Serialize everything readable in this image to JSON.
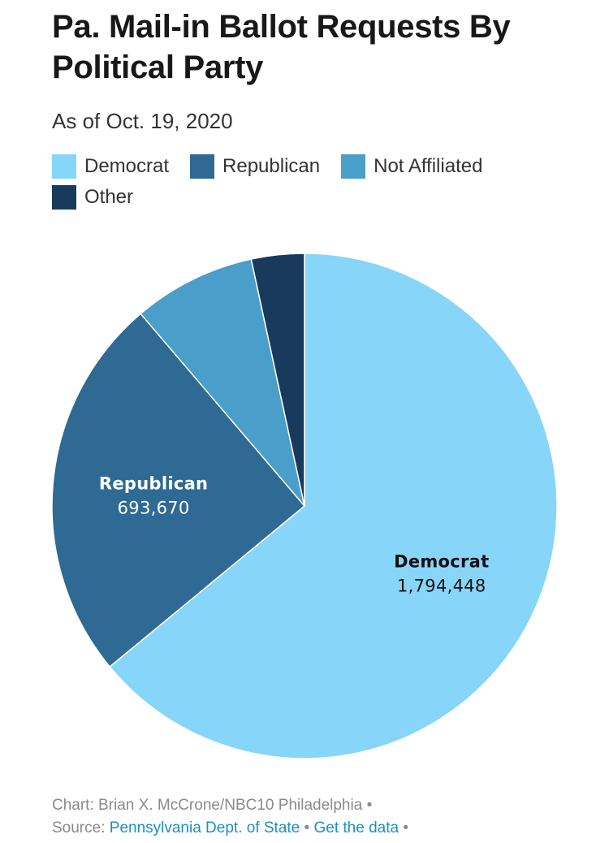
{
  "chart_data": {
    "type": "pie",
    "title": "Pa. Mail-in Ballot Requests By Political Party",
    "subtitle": "As of Oct. 19, 2020",
    "slices": [
      {
        "name": "Democrat",
        "value": 1794448,
        "value_label": "1,794,448",
        "color": "#87d5f9",
        "label_color": "#111111",
        "show_label": true
      },
      {
        "name": "Republican",
        "value": 693670,
        "value_label": "693,670",
        "color": "#2e6a93",
        "label_color": "#ffffff",
        "show_label": true
      },
      {
        "name": "Not Affiliated",
        "value": 220000,
        "value_label": "",
        "color": "#4a9fca",
        "label_color": "#ffffff",
        "show_label": false
      },
      {
        "name": "Other",
        "value": 95000,
        "value_label": "",
        "color": "#183a5c",
        "label_color": "#ffffff",
        "show_label": false
      }
    ],
    "start_angle": "12 o'clock",
    "direction": "clockwise",
    "legend_position": "top-left"
  },
  "legend": [
    {
      "label": "Democrat",
      "color": "#87d5f9"
    },
    {
      "label": "Republican",
      "color": "#2e6a93"
    },
    {
      "label": "Not Affiliated",
      "color": "#4a9fca"
    },
    {
      "label": "Other",
      "color": "#183a5c"
    }
  ],
  "footer": {
    "credit": "Chart: Brian X. McCrone/NBC10 Philadelphia",
    "bullet": "•",
    "source_prefix": "Source:",
    "source_link": "Pennsylvania Dept. of State",
    "data_link": "Get the data"
  }
}
